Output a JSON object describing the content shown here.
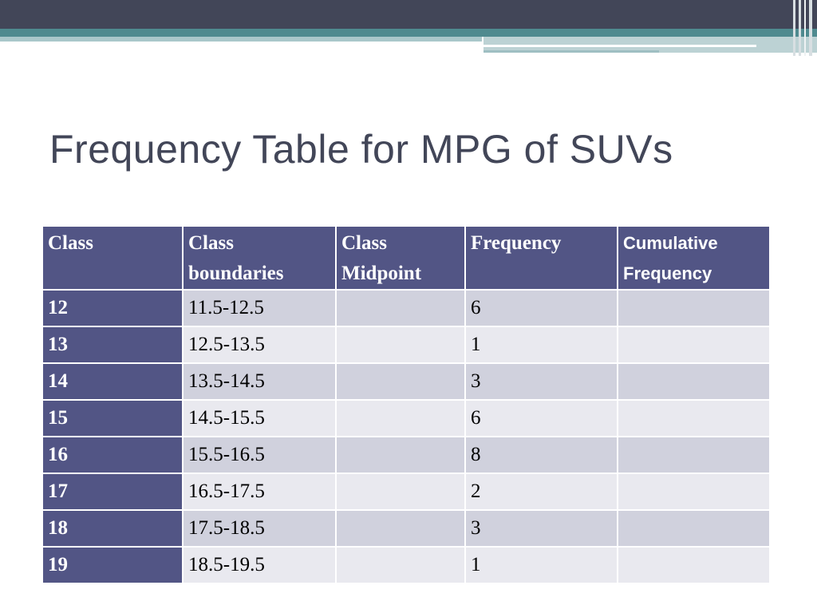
{
  "slide": {
    "title": "Frequency Table for MPG of SUVs"
  },
  "table": {
    "headers": [
      {
        "line1": "Class",
        "line2": ""
      },
      {
        "line1": "Class",
        "line2": "boundaries"
      },
      {
        "line1": "Class",
        "line2": "Midpoint"
      },
      {
        "line1": "Frequency",
        "line2": ""
      },
      {
        "line1": "Cumulative",
        "line2": "Frequency"
      }
    ],
    "rows": [
      {
        "class": "12",
        "boundaries": "11.5-12.5",
        "midpoint": "",
        "frequency": "6",
        "cumulative": ""
      },
      {
        "class": "13",
        "boundaries": "12.5-13.5",
        "midpoint": "",
        "frequency": "1",
        "cumulative": ""
      },
      {
        "class": "14",
        "boundaries": "13.5-14.5",
        "midpoint": "",
        "frequency": "3",
        "cumulative": ""
      },
      {
        "class": "15",
        "boundaries": "14.5-15.5",
        "midpoint": "",
        "frequency": "6",
        "cumulative": ""
      },
      {
        "class": "16",
        "boundaries": "15.5-16.5",
        "midpoint": "",
        "frequency": "8",
        "cumulative": ""
      },
      {
        "class": "17",
        "boundaries": "16.5-17.5",
        "midpoint": "",
        "frequency": "2",
        "cumulative": ""
      },
      {
        "class": "18",
        "boundaries": "17.5-18.5",
        "midpoint": "",
        "frequency": "3",
        "cumulative": ""
      },
      {
        "class": "19",
        "boundaries": "18.5-19.5",
        "midpoint": "",
        "frequency": "1",
        "cumulative": ""
      }
    ]
  },
  "colors": {
    "header_bg": "#525585",
    "row_odd": "#d0d1dd",
    "row_even": "#e9e9ef",
    "title": "#424658",
    "band_dark": "#424658",
    "band_teal": "#4f8a8f"
  }
}
